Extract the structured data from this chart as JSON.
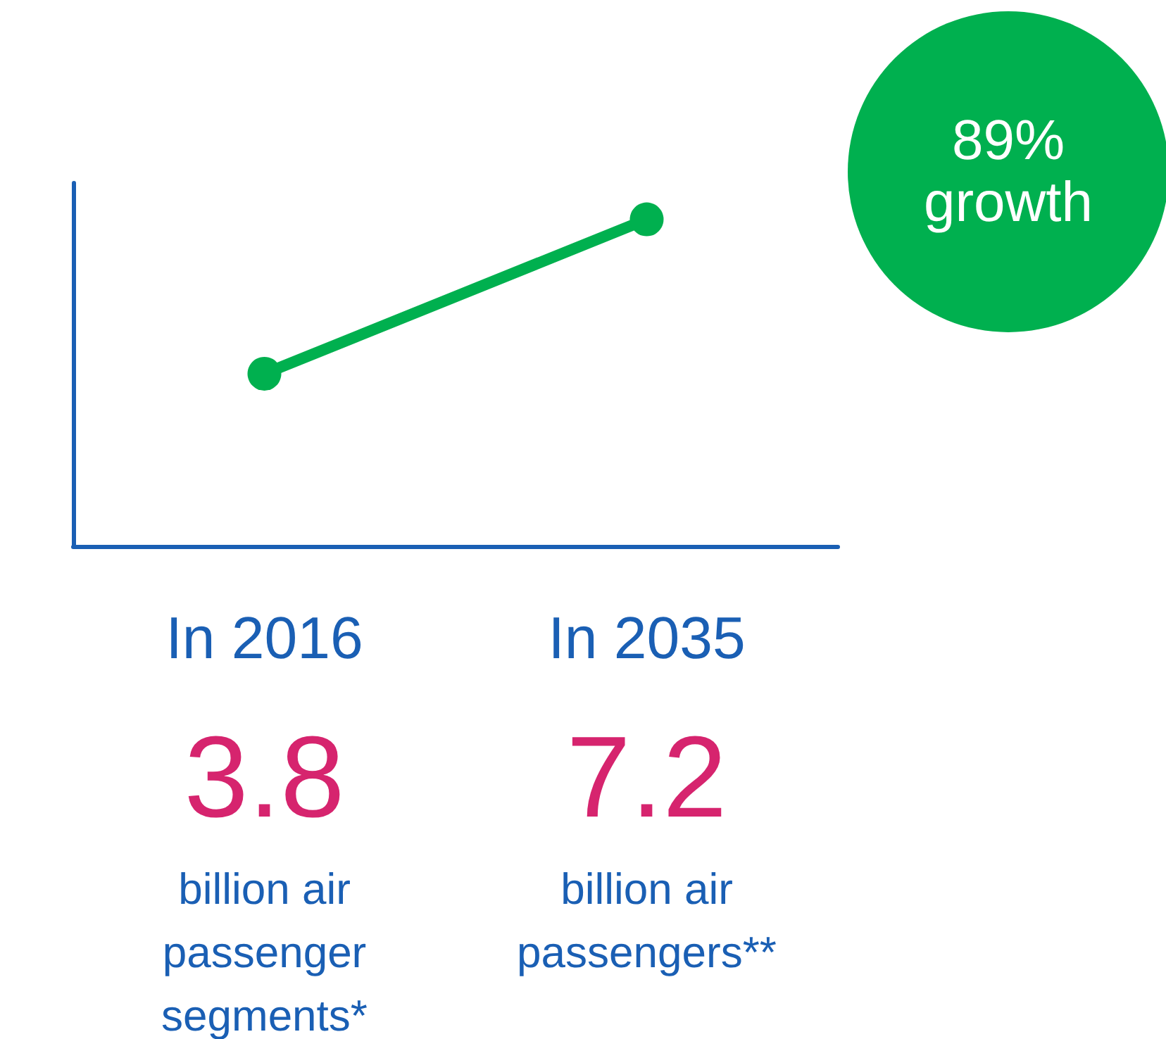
{
  "chart_data": {
    "type": "line",
    "categories": [
      "In 2016",
      "In 2035"
    ],
    "series": [
      {
        "color": "#00b04f",
        "values": [
          3.8,
          7.2
        ],
        "value_labels": [
          "3.8",
          "7.2"
        ]
      }
    ],
    "annotations": [
      "89% growth",
      "billion air passenger segments*",
      "billion air passengers**"
    ],
    "marker": "circle",
    "line_style": "solid",
    "grid": false,
    "tick_labels": "x"
  }
}
